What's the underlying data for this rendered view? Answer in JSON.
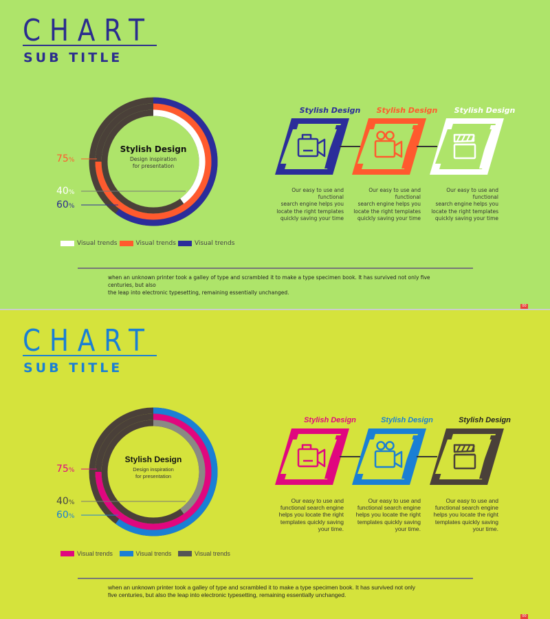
{
  "slides": [
    {
      "background": "#aee46a",
      "title": "CHART",
      "subtitle": "SUB TITLE",
      "title_color": "#2b2d8e",
      "track_color": "#4a4039",
      "rings": [
        {
          "label": "60",
          "unit": "%",
          "value": 60,
          "color": "#2b2d9a",
          "label_color": "#2b2d8e"
        },
        {
          "label": "75",
          "unit": "%",
          "value": 75,
          "color": "#ff5a2e",
          "label_color": "#ff5a2e"
        },
        {
          "label": "40",
          "unit": "%",
          "value": 40,
          "color": "#ffffff",
          "label_color": "#ffffff"
        }
      ],
      "center": {
        "title": "Stylish Design",
        "line1": "Design inspiration",
        "line2": "for presentation"
      },
      "legend": [
        {
          "label": "Visual trends",
          "color": "#ffffff"
        },
        {
          "label": "Visual trends",
          "color": "#ff5a2e"
        },
        {
          "label": "Visual trends",
          "color": "#2b2d9a"
        }
      ],
      "steps": [
        {
          "title": "Stylish Design",
          "color": "#2b2d9a",
          "icon": "video-camera-icon",
          "desc": [
            "Our easy to use and functional",
            "search engine helps you",
            "locate the right templates",
            "quickly saving your time"
          ]
        },
        {
          "title": "Stylish Design",
          "color": "#ff5a2e",
          "icon": "movie-camera-icon",
          "desc": [
            "Our easy to use and functional",
            "search engine helps you",
            "locate the right templates",
            "quickly saving your time"
          ]
        },
        {
          "title": "Stylish Design",
          "color": "#ffffff",
          "icon": "clapperboard-icon",
          "desc": [
            "Our easy to use and functional",
            "search engine helps you",
            "locate the right templates",
            "quickly saving your time"
          ]
        }
      ],
      "footnote": [
        "when an unknown printer took a galley of type and scrambled it to make a type specimen book. It has survived not only five centuries, but also",
        "the leap into electronic typesetting, remaining essentially unchanged."
      ],
      "page_number": "00"
    },
    {
      "background": "#d5e33c",
      "title": "CHART",
      "subtitle": "SUB TITLE",
      "title_color": "#1a7fd4",
      "track_color": "#4a4039",
      "rings": [
        {
          "label": "60",
          "unit": "%",
          "value": 60,
          "color": "#1a7fd4",
          "label_color": "#1a7fd4"
        },
        {
          "label": "75",
          "unit": "%",
          "value": 75,
          "color": "#e0077f",
          "label_color": "#e0077f"
        },
        {
          "label": "40",
          "unit": "%",
          "value": 40,
          "color": "#8a8a84",
          "label_color": "#444444"
        }
      ],
      "center": {
        "title": "Stylish Design",
        "line1": "Design inspiration",
        "line2": "for presentation"
      },
      "legend": [
        {
          "label": "Visual trends",
          "color": "#e0077f"
        },
        {
          "label": "Visual trends",
          "color": "#1a7fd4"
        },
        {
          "label": "Visual trends",
          "color": "#555555"
        }
      ],
      "steps": [
        {
          "title": "Stylish Design",
          "color": "#e0077f",
          "icon": "video-camera-icon",
          "desc": [
            "Our easy to use and",
            "functional search engine",
            "helps you locate the right",
            "templates quickly saving",
            "your time."
          ]
        },
        {
          "title": "Stylish Design",
          "color": "#1a7fd4",
          "icon": "movie-camera-icon",
          "desc": [
            "Our easy to use and",
            "functional search engine",
            "helps you locate the right",
            "templates quickly saving",
            "your time."
          ]
        },
        {
          "title": "Stylish Design",
          "color": "#222222",
          "frame_color": "#4a4039",
          "icon": "clapperboard-icon",
          "desc": [
            "Our easy to use and",
            "functional search engine",
            "helps you locate the right",
            "templates quickly saving",
            "your time."
          ]
        }
      ],
      "footnote": [
        "when an unknown printer took a galley of type and scrambled it to make a type specimen book. It has survived not only",
        "five centuries, but also the leap into electronic typesetting, remaining essentially unchanged."
      ],
      "page_number": "00"
    }
  ]
}
